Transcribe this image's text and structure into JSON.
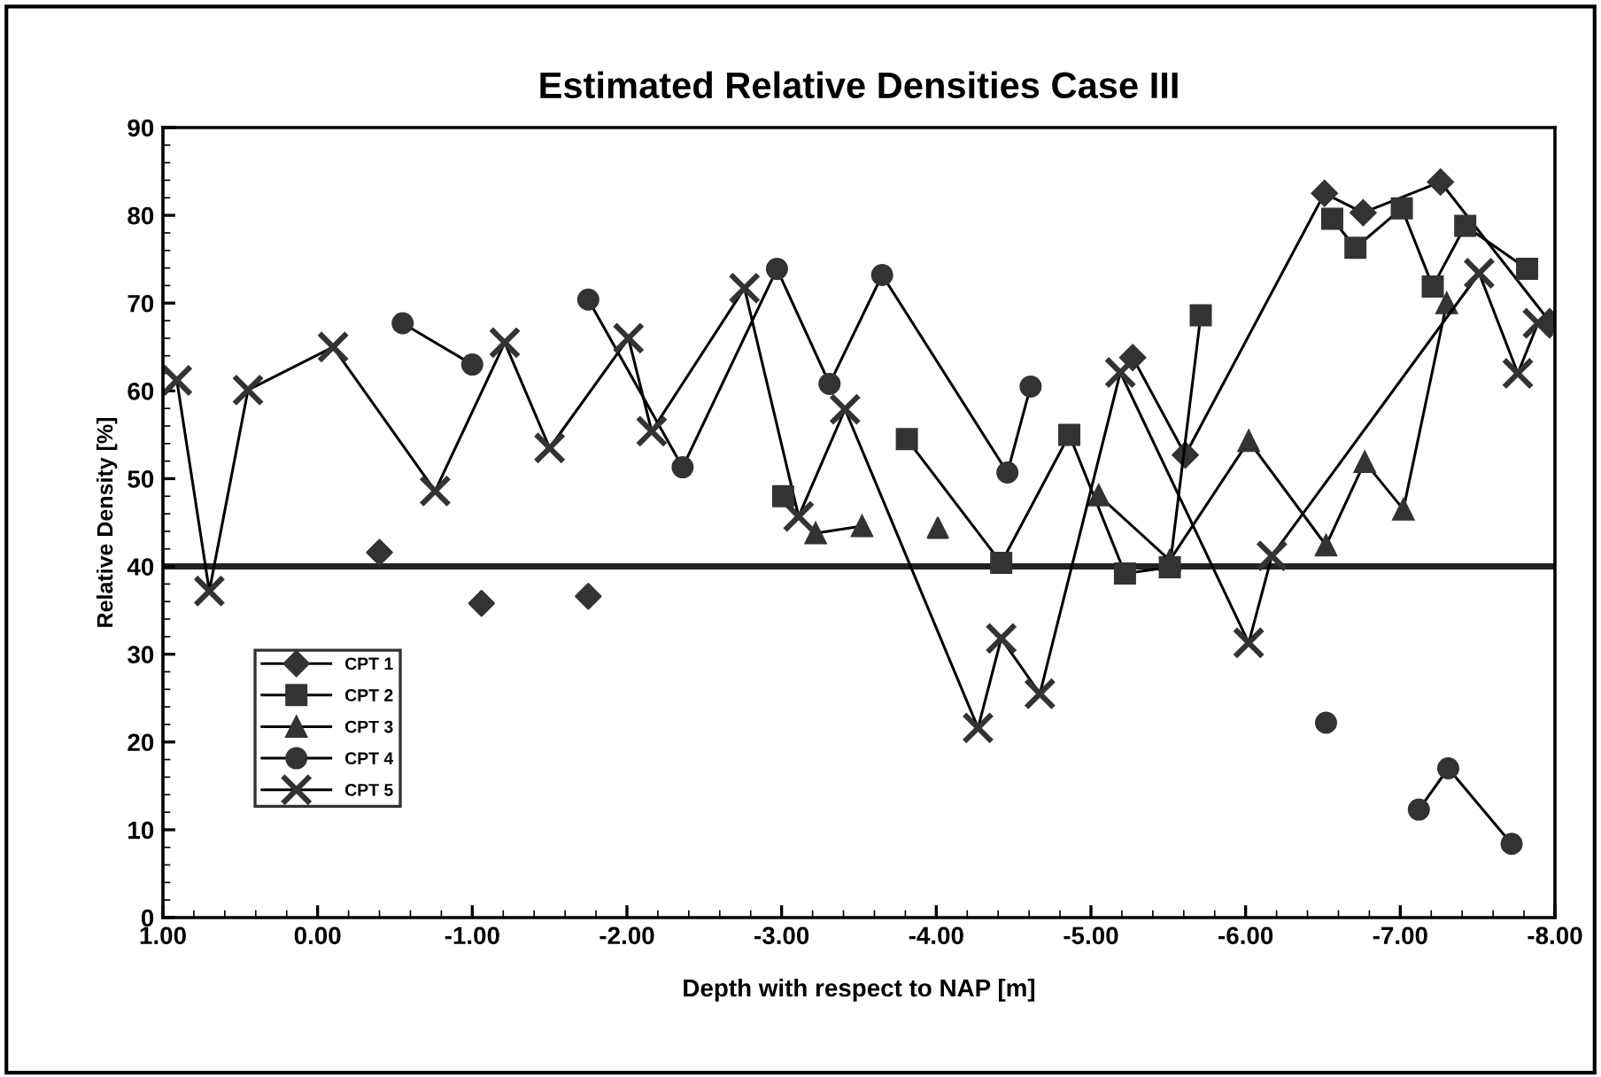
{
  "chart_data": {
    "type": "line",
    "title": "Estimated Relative Densities Case III",
    "xlabel": "Depth with respect to NAP [m]",
    "ylabel": "Relative Density [%]",
    "xlim": [
      1,
      -8
    ],
    "ylim": [
      0,
      90
    ],
    "xticks": [
      {
        "value": 1,
        "label": "1.00"
      },
      {
        "value": 0,
        "label": "0.00"
      },
      {
        "value": -1,
        "label": "-1.00"
      },
      {
        "value": -2,
        "label": "-2.00"
      },
      {
        "value": -3,
        "label": "-3.00"
      },
      {
        "value": -4,
        "label": "-4.00"
      },
      {
        "value": -5,
        "label": "-5.00"
      },
      {
        "value": -6,
        "label": "-6.00"
      },
      {
        "value": -7,
        "label": "-7.00"
      },
      {
        "value": -8,
        "label": "-8.00"
      }
    ],
    "yticks": [
      0,
      10,
      20,
      30,
      40,
      50,
      60,
      70,
      80,
      90
    ],
    "grid": false,
    "legend": "lower left",
    "ref_lines": [
      {
        "axis": "y",
        "value": 40,
        "color": "#222222"
      }
    ],
    "series": [
      {
        "name": "CPT 1",
        "color": "#333333",
        "marker": "diamond",
        "x": [
          -5.27,
          -5.61,
          -6.51,
          -6.76,
          -7.26,
          -7.97
        ],
        "values": [
          63.8,
          52.7,
          82.5,
          80.3,
          83.8,
          67.8
        ]
      },
      {
        "name": "CPT 2",
        "color": "#333333",
        "marker": "square",
        "x": [
          -3.81,
          -4.42,
          -4.86,
          -5.22,
          -5.51,
          -5.71
        ],
        "values": [
          54.5,
          40.4,
          55.0,
          39.2,
          39.9,
          68.6
        ]
      },
      {
        "color": "#333333",
        "marker": "square",
        "x": [
          -6.56,
          -6.71,
          -7.01,
          -7.21,
          -7.42,
          -7.82
        ],
        "values": [
          79.6,
          76.3,
          80.8,
          71.9,
          78.8,
          73.9
        ]
      },
      {
        "name": "CPT 3",
        "color": "#333333",
        "marker": "triangle",
        "x": [
          -3.22,
          -3.52
        ],
        "values": [
          43.8,
          44.6
        ]
      },
      {
        "color": "#333333",
        "marker": "triangle",
        "x": [
          -5.05,
          -5.51,
          -6.02,
          -6.52,
          -6.77,
          -7.02,
          -7.3
        ],
        "values": [
          48.1,
          40.7,
          54.3,
          42.4,
          51.9,
          46.5,
          70.0
        ]
      },
      {
        "name": "CPT 4",
        "color": "#333333",
        "marker": "circle",
        "x": [
          -0.55,
          -1.0
        ],
        "values": [
          67.7,
          63.0
        ]
      },
      {
        "color": "#333333",
        "marker": "circle",
        "x": [
          -1.75,
          -2.36,
          -2.97,
          -3.31,
          -3.65,
          -4.46,
          -4.61
        ],
        "values": [
          70.4,
          51.3,
          73.9,
          60.8,
          73.2,
          50.7,
          60.5
        ]
      },
      {
        "color": "#333333",
        "marker": "circle",
        "x": [
          -7.12,
          -7.31,
          -7.72
        ],
        "values": [
          12.3,
          17.0,
          8.4
        ]
      },
      {
        "name": "CPT 5",
        "color": "#333333",
        "marker": "cross",
        "x": [
          0.91,
          0.7,
          0.45,
          -0.1,
          -0.76,
          -1.21,
          -1.5,
          -2.01,
          -2.16,
          -2.76,
          -3.11,
          -3.41,
          -4.27,
          -4.42,
          -4.67,
          -5.19,
          -6.02,
          -6.17,
          -7.51,
          -7.76,
          -7.89
        ],
        "values": [
          61.2,
          37.2,
          60.1,
          65.0,
          48.6,
          65.5,
          53.5,
          66.0,
          55.4,
          71.7,
          45.7,
          57.9,
          21.6,
          31.8,
          25.5,
          62.1,
          31.3,
          41.2,
          73.4,
          62.0,
          67.7
        ]
      },
      {
        "type": "scatter",
        "color": "#333333",
        "marker": "diamond",
        "x": [
          -0.4,
          -1.06,
          -1.75
        ],
        "values": [
          41.6,
          35.8,
          36.6
        ]
      },
      {
        "type": "scatter",
        "color": "#333333",
        "marker": "square",
        "x": [
          -3.01
        ],
        "values": [
          48.0
        ]
      },
      {
        "type": "scatter",
        "color": "#333333",
        "marker": "triangle",
        "x": [
          -4.01
        ],
        "values": [
          44.4
        ]
      },
      {
        "type": "scatter",
        "color": "#333333",
        "marker": "circle",
        "x": [
          -6.52
        ],
        "values": [
          22.2
        ]
      }
    ]
  }
}
